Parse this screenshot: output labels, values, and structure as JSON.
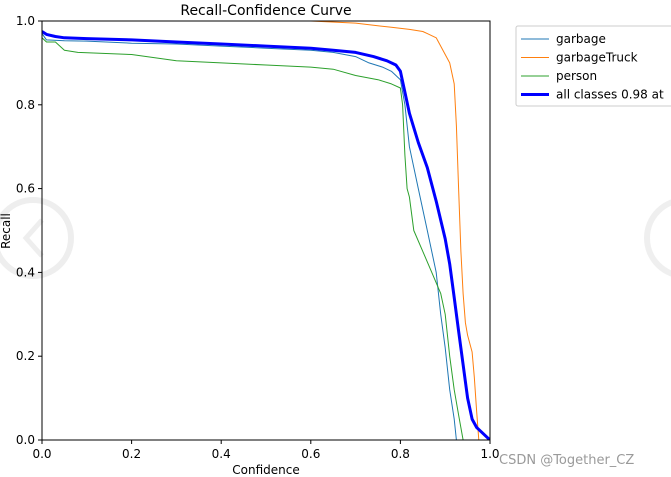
{
  "chart_data": {
    "type": "line",
    "title": "Recall-Confidence Curve",
    "xlabel": "Confidence",
    "ylabel": "Recall",
    "xlim": [
      0,
      1
    ],
    "ylim": [
      0,
      1
    ],
    "xticks": [
      "0.0",
      "0.2",
      "0.4",
      "0.6",
      "0.8",
      "1.0"
    ],
    "yticks": [
      "0.0",
      "0.2",
      "0.4",
      "0.6",
      "0.8",
      "1.0"
    ],
    "grid": false,
    "legend_position": "outside-right",
    "series": [
      {
        "name": "garbage",
        "color": "#1f77b4",
        "width": 1,
        "points": [
          [
            0,
            0.97
          ],
          [
            0.01,
            0.955
          ],
          [
            0.05,
            0.953
          ],
          [
            0.1,
            0.952
          ],
          [
            0.2,
            0.947
          ],
          [
            0.3,
            0.945
          ],
          [
            0.4,
            0.94
          ],
          [
            0.5,
            0.935
          ],
          [
            0.6,
            0.93
          ],
          [
            0.65,
            0.925
          ],
          [
            0.7,
            0.915
          ],
          [
            0.73,
            0.9
          ],
          [
            0.76,
            0.89
          ],
          [
            0.78,
            0.88
          ],
          [
            0.8,
            0.86
          ],
          [
            0.81,
            0.8
          ],
          [
            0.82,
            0.7
          ],
          [
            0.84,
            0.6
          ],
          [
            0.86,
            0.5
          ],
          [
            0.88,
            0.4
          ],
          [
            0.89,
            0.3
          ],
          [
            0.9,
            0.22
          ],
          [
            0.91,
            0.12
          ],
          [
            0.92,
            0.05
          ],
          [
            0.925,
            0.0
          ]
        ]
      },
      {
        "name": "garbageTruck",
        "color": "#ff7f0e",
        "width": 1,
        "points": [
          [
            0,
            1.0
          ],
          [
            0.1,
            1.0
          ],
          [
            0.3,
            1.0
          ],
          [
            0.5,
            1.0
          ],
          [
            0.6,
            1.0
          ],
          [
            0.7,
            0.995
          ],
          [
            0.74,
            0.99
          ],
          [
            0.78,
            0.985
          ],
          [
            0.82,
            0.98
          ],
          [
            0.85,
            0.975
          ],
          [
            0.86,
            0.97
          ],
          [
            0.88,
            0.96
          ],
          [
            0.89,
            0.94
          ],
          [
            0.9,
            0.92
          ],
          [
            0.91,
            0.9
          ],
          [
            0.92,
            0.85
          ],
          [
            0.925,
            0.75
          ],
          [
            0.93,
            0.6
          ],
          [
            0.935,
            0.45
          ],
          [
            0.94,
            0.35
          ],
          [
            0.945,
            0.28
          ],
          [
            0.95,
            0.25
          ],
          [
            0.96,
            0.21
          ],
          [
            0.965,
            0.15
          ],
          [
            0.97,
            0.07
          ],
          [
            0.975,
            0.0
          ]
        ]
      },
      {
        "name": "person",
        "color": "#2ca02c",
        "width": 1,
        "points": [
          [
            0,
            0.96
          ],
          [
            0.01,
            0.95
          ],
          [
            0.03,
            0.95
          ],
          [
            0.05,
            0.93
          ],
          [
            0.08,
            0.925
          ],
          [
            0.2,
            0.92
          ],
          [
            0.3,
            0.905
          ],
          [
            0.4,
            0.9
          ],
          [
            0.5,
            0.895
          ],
          [
            0.6,
            0.89
          ],
          [
            0.65,
            0.885
          ],
          [
            0.7,
            0.87
          ],
          [
            0.75,
            0.86
          ],
          [
            0.78,
            0.85
          ],
          [
            0.8,
            0.84
          ],
          [
            0.805,
            0.8
          ],
          [
            0.81,
            0.68
          ],
          [
            0.815,
            0.6
          ],
          [
            0.82,
            0.58
          ],
          [
            0.83,
            0.5
          ],
          [
            0.85,
            0.45
          ],
          [
            0.87,
            0.4
          ],
          [
            0.89,
            0.35
          ],
          [
            0.9,
            0.3
          ],
          [
            0.91,
            0.2
          ],
          [
            0.92,
            0.12
          ],
          [
            0.93,
            0.06
          ],
          [
            0.94,
            0.0
          ]
        ]
      },
      {
        "name": "all classes 0.98 at",
        "color": "#0000ff",
        "width": 3,
        "points": [
          [
            0,
            0.975
          ],
          [
            0.01,
            0.968
          ],
          [
            0.03,
            0.963
          ],
          [
            0.05,
            0.96
          ],
          [
            0.1,
            0.958
          ],
          [
            0.2,
            0.955
          ],
          [
            0.3,
            0.95
          ],
          [
            0.4,
            0.945
          ],
          [
            0.5,
            0.94
          ],
          [
            0.6,
            0.935
          ],
          [
            0.65,
            0.93
          ],
          [
            0.7,
            0.925
          ],
          [
            0.74,
            0.915
          ],
          [
            0.77,
            0.905
          ],
          [
            0.79,
            0.895
          ],
          [
            0.8,
            0.88
          ],
          [
            0.81,
            0.83
          ],
          [
            0.82,
            0.78
          ],
          [
            0.84,
            0.71
          ],
          [
            0.86,
            0.65
          ],
          [
            0.88,
            0.57
          ],
          [
            0.9,
            0.48
          ],
          [
            0.91,
            0.42
          ],
          [
            0.92,
            0.34
          ],
          [
            0.93,
            0.26
          ],
          [
            0.94,
            0.18
          ],
          [
            0.95,
            0.1
          ],
          [
            0.96,
            0.05
          ],
          [
            0.97,
            0.03
          ],
          [
            0.98,
            0.02
          ],
          [
            0.99,
            0.01
          ],
          [
            1.0,
            0.0
          ]
        ]
      }
    ]
  },
  "watermark": "CSDN @Together_CZ"
}
